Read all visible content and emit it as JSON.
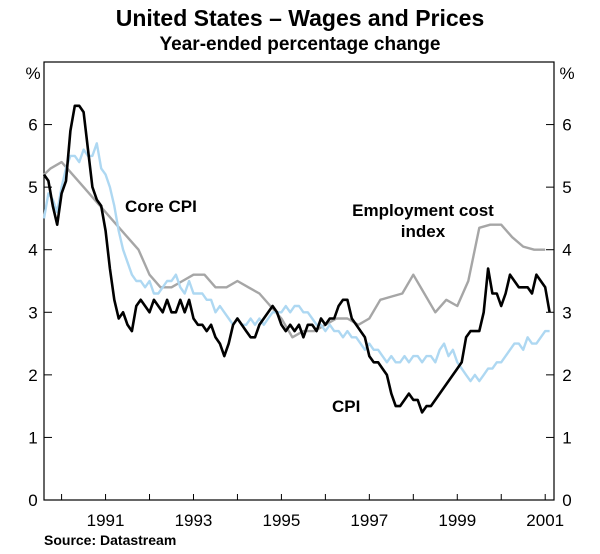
{
  "chart_data": {
    "type": "line",
    "title": "United States – Wages and Prices",
    "subtitle": "Year-ended percentage change",
    "unit_left": "%",
    "unit_right": "%",
    "source": "Source: Datastream",
    "ylim": [
      0,
      7
    ],
    "xlim": [
      1989.6,
      2001.2
    ],
    "yticks": [
      0,
      1,
      2,
      3,
      4,
      5,
      6
    ],
    "ytick_labels": [
      "0",
      "1",
      "2",
      "3",
      "4",
      "5",
      "6"
    ],
    "xticks": [
      1991,
      1993,
      1995,
      1997,
      1999,
      2001
    ],
    "xtick_labels": [
      "1991",
      "1993",
      "1995",
      "1997",
      "1999",
      "2001"
    ],
    "series": [
      {
        "name": "Employment cost index",
        "label_lines": [
          "Employment cost",
          "index"
        ],
        "color": "#a6a6a6",
        "x": [
          1989.6,
          1989.75,
          1990.0,
          1990.25,
          1990.5,
          1990.75,
          1991.0,
          1991.25,
          1991.5,
          1991.75,
          1992.0,
          1992.25,
          1992.5,
          1992.75,
          1993.0,
          1993.25,
          1993.5,
          1993.75,
          1994.0,
          1994.25,
          1994.5,
          1994.75,
          1995.0,
          1995.25,
          1995.5,
          1995.75,
          1996.0,
          1996.25,
          1996.5,
          1996.75,
          1997.0,
          1997.25,
          1997.5,
          1997.75,
          1998.0,
          1998.25,
          1998.5,
          1998.75,
          1999.0,
          1999.25,
          1999.5,
          1999.75,
          2000.0,
          2000.25,
          2000.5,
          2000.75,
          2001.0
        ],
        "values": [
          5.2,
          5.3,
          5.4,
          5.2,
          5.0,
          4.8,
          4.6,
          4.4,
          4.2,
          4.0,
          3.6,
          3.4,
          3.4,
          3.5,
          3.6,
          3.6,
          3.4,
          3.4,
          3.5,
          3.4,
          3.3,
          3.1,
          2.9,
          2.6,
          2.7,
          2.7,
          2.8,
          2.9,
          2.9,
          2.8,
          2.9,
          3.2,
          3.25,
          3.3,
          3.6,
          3.3,
          3.0,
          3.2,
          3.1,
          3.5,
          4.35,
          4.4,
          4.4,
          4.2,
          4.05,
          4.0,
          4.0
        ]
      },
      {
        "name": "Core CPI",
        "label_lines": [
          "Core CPI"
        ],
        "color": "#aed8f2",
        "x": [
          1989.6,
          1989.7,
          1989.8,
          1989.9,
          1990.0,
          1990.1,
          1990.2,
          1990.3,
          1990.4,
          1990.5,
          1990.6,
          1990.7,
          1990.8,
          1990.9,
          1991.0,
          1991.1,
          1991.2,
          1991.3,
          1991.4,
          1991.5,
          1991.6,
          1991.7,
          1991.8,
          1991.9,
          1992.0,
          1992.1,
          1992.2,
          1992.3,
          1992.4,
          1992.5,
          1992.6,
          1992.7,
          1992.8,
          1992.9,
          1993.0,
          1993.1,
          1993.2,
          1993.3,
          1993.4,
          1993.5,
          1993.6,
          1993.7,
          1993.8,
          1993.9,
          1994.0,
          1994.1,
          1994.2,
          1994.3,
          1994.4,
          1994.5,
          1994.6,
          1994.7,
          1994.8,
          1994.9,
          1995.0,
          1995.1,
          1995.2,
          1995.3,
          1995.4,
          1995.5,
          1995.6,
          1995.7,
          1995.8,
          1995.9,
          1996.0,
          1996.1,
          1996.2,
          1996.3,
          1996.4,
          1996.5,
          1996.6,
          1996.7,
          1996.8,
          1996.9,
          1997.0,
          1997.1,
          1997.2,
          1997.3,
          1997.4,
          1997.5,
          1997.6,
          1997.7,
          1997.8,
          1997.9,
          1998.0,
          1998.1,
          1998.2,
          1998.3,
          1998.4,
          1998.5,
          1998.6,
          1998.7,
          1998.8,
          1998.9,
          1999.0,
          1999.1,
          1999.2,
          1999.3,
          1999.4,
          1999.5,
          1999.6,
          1999.7,
          1999.8,
          1999.9,
          2000.0,
          2000.1,
          2000.2,
          2000.3,
          2000.4,
          2000.5,
          2000.6,
          2000.7,
          2000.8,
          2000.9,
          2001.0,
          2001.1
        ],
        "values": [
          4.5,
          4.9,
          4.8,
          4.6,
          5.0,
          5.3,
          5.5,
          5.5,
          5.4,
          5.6,
          5.5,
          5.5,
          5.7,
          5.3,
          5.2,
          5.0,
          4.7,
          4.3,
          4.0,
          3.8,
          3.6,
          3.5,
          3.5,
          3.4,
          3.5,
          3.3,
          3.3,
          3.4,
          3.5,
          3.5,
          3.6,
          3.4,
          3.3,
          3.5,
          3.3,
          3.3,
          3.3,
          3.2,
          3.2,
          3.0,
          3.1,
          3.0,
          2.9,
          2.8,
          2.9,
          2.8,
          2.8,
          2.9,
          2.8,
          2.9,
          2.8,
          2.9,
          3.0,
          3.0,
          3.0,
          3.1,
          3.0,
          3.1,
          3.1,
          3.0,
          3.0,
          2.9,
          2.8,
          2.8,
          2.7,
          2.8,
          2.7,
          2.7,
          2.6,
          2.7,
          2.6,
          2.6,
          2.5,
          2.4,
          2.5,
          2.4,
          2.4,
          2.3,
          2.2,
          2.3,
          2.2,
          2.2,
          2.3,
          2.2,
          2.3,
          2.3,
          2.2,
          2.3,
          2.3,
          2.2,
          2.4,
          2.5,
          2.3,
          2.4,
          2.2,
          2.1,
          2.0,
          1.9,
          2.0,
          1.9,
          2.0,
          2.1,
          2.1,
          2.2,
          2.2,
          2.3,
          2.4,
          2.5,
          2.5,
          2.4,
          2.6,
          2.5,
          2.5,
          2.6,
          2.7,
          2.7
        ]
      },
      {
        "name": "CPI",
        "label_lines": [
          "CPI"
        ],
        "color": "#000000",
        "x": [
          1989.6,
          1989.7,
          1989.8,
          1989.9,
          1990.0,
          1990.1,
          1990.2,
          1990.3,
          1990.4,
          1990.5,
          1990.6,
          1990.7,
          1990.8,
          1990.9,
          1991.0,
          1991.1,
          1991.2,
          1991.3,
          1991.4,
          1991.5,
          1991.6,
          1991.7,
          1991.8,
          1991.9,
          1992.0,
          1992.1,
          1992.2,
          1992.3,
          1992.4,
          1992.5,
          1992.6,
          1992.7,
          1992.8,
          1992.9,
          1993.0,
          1993.1,
          1993.2,
          1993.3,
          1993.4,
          1993.5,
          1993.6,
          1993.7,
          1993.8,
          1993.9,
          1994.0,
          1994.1,
          1994.2,
          1994.3,
          1994.4,
          1994.5,
          1994.6,
          1994.7,
          1994.8,
          1994.9,
          1995.0,
          1995.1,
          1995.2,
          1995.3,
          1995.4,
          1995.5,
          1995.6,
          1995.7,
          1995.8,
          1995.9,
          1996.0,
          1996.1,
          1996.2,
          1996.3,
          1996.4,
          1996.5,
          1996.6,
          1996.7,
          1996.8,
          1996.9,
          1997.0,
          1997.1,
          1997.2,
          1997.3,
          1997.4,
          1997.5,
          1997.6,
          1997.7,
          1997.8,
          1997.9,
          1998.0,
          1998.1,
          1998.2,
          1998.3,
          1998.4,
          1998.5,
          1998.6,
          1998.7,
          1998.8,
          1998.9,
          1999.0,
          1999.1,
          1999.2,
          1999.3,
          1999.4,
          1999.5,
          1999.6,
          1999.7,
          1999.8,
          1999.9,
          2000.0,
          2000.1,
          2000.2,
          2000.3,
          2000.4,
          2000.5,
          2000.6,
          2000.7,
          2000.8,
          2000.9,
          2001.0,
          2001.1
        ],
        "values": [
          5.2,
          5.1,
          4.7,
          4.4,
          4.9,
          5.1,
          5.9,
          6.3,
          6.3,
          6.2,
          5.6,
          5.0,
          4.8,
          4.7,
          4.3,
          3.7,
          3.2,
          2.9,
          3.0,
          2.8,
          2.7,
          3.1,
          3.2,
          3.1,
          3.0,
          3.2,
          3.1,
          3.0,
          3.2,
          3.0,
          3.0,
          3.2,
          3.0,
          3.2,
          2.9,
          2.8,
          2.8,
          2.7,
          2.8,
          2.6,
          2.5,
          2.3,
          2.5,
          2.8,
          2.9,
          2.8,
          2.7,
          2.6,
          2.6,
          2.8,
          2.9,
          3.0,
          3.1,
          3.0,
          2.8,
          2.7,
          2.8,
          2.7,
          2.8,
          2.6,
          2.8,
          2.8,
          2.7,
          2.9,
          2.8,
          2.9,
          2.9,
          3.1,
          3.2,
          3.2,
          2.9,
          2.8,
          2.7,
          2.6,
          2.3,
          2.2,
          2.2,
          2.1,
          2.0,
          1.7,
          1.5,
          1.5,
          1.6,
          1.7,
          1.6,
          1.6,
          1.4,
          1.5,
          1.5,
          1.6,
          1.7,
          1.8,
          1.9,
          2.0,
          2.1,
          2.2,
          2.6,
          2.7,
          2.7,
          2.7,
          3.0,
          3.7,
          3.3,
          3.3,
          3.1,
          3.3,
          3.6,
          3.5,
          3.4,
          3.4,
          3.4,
          3.3,
          3.6,
          3.5,
          3.4,
          3.0
        ]
      }
    ]
  }
}
